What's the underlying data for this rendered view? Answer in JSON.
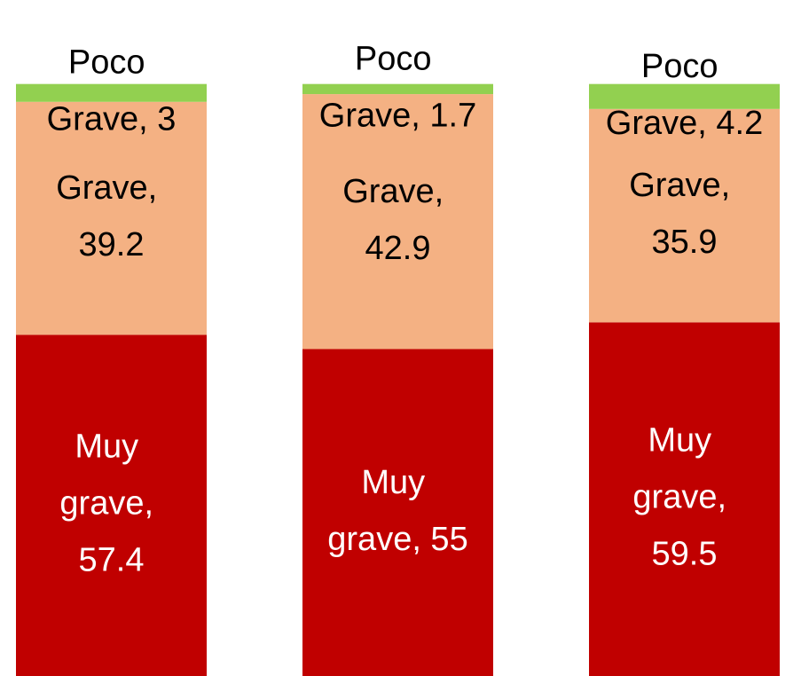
{
  "chart_data": {
    "type": "bar",
    "stacked": true,
    "categories": [
      null,
      null,
      null
    ],
    "ylim": [
      0,
      100
    ],
    "series": [
      {
        "name": "Muy grave",
        "color": "#c00000",
        "label_color": "#ffffff",
        "values": [
          57.4,
          55,
          59.5
        ],
        "value_labels": [
          "Muy grave, 57.4",
          "Muy grave, 55",
          "Muy grave, 59.5"
        ]
      },
      {
        "name": "Grave",
        "color": "#f4b183",
        "label_color": "#000000",
        "values": [
          39.2,
          42.9,
          35.9
        ],
        "value_labels": [
          "Grave, 39.2",
          "Grave, 42.9",
          "Grave, 35.9"
        ]
      },
      {
        "name": "Poco Grave",
        "color": "#92d050",
        "label_color": "#000000",
        "values": [
          3,
          1.7,
          4.2
        ],
        "value_labels": [
          "Poco Grave, 3",
          "Poco Grave, 1.7",
          "Poco Grave, 4.2"
        ]
      }
    ]
  }
}
